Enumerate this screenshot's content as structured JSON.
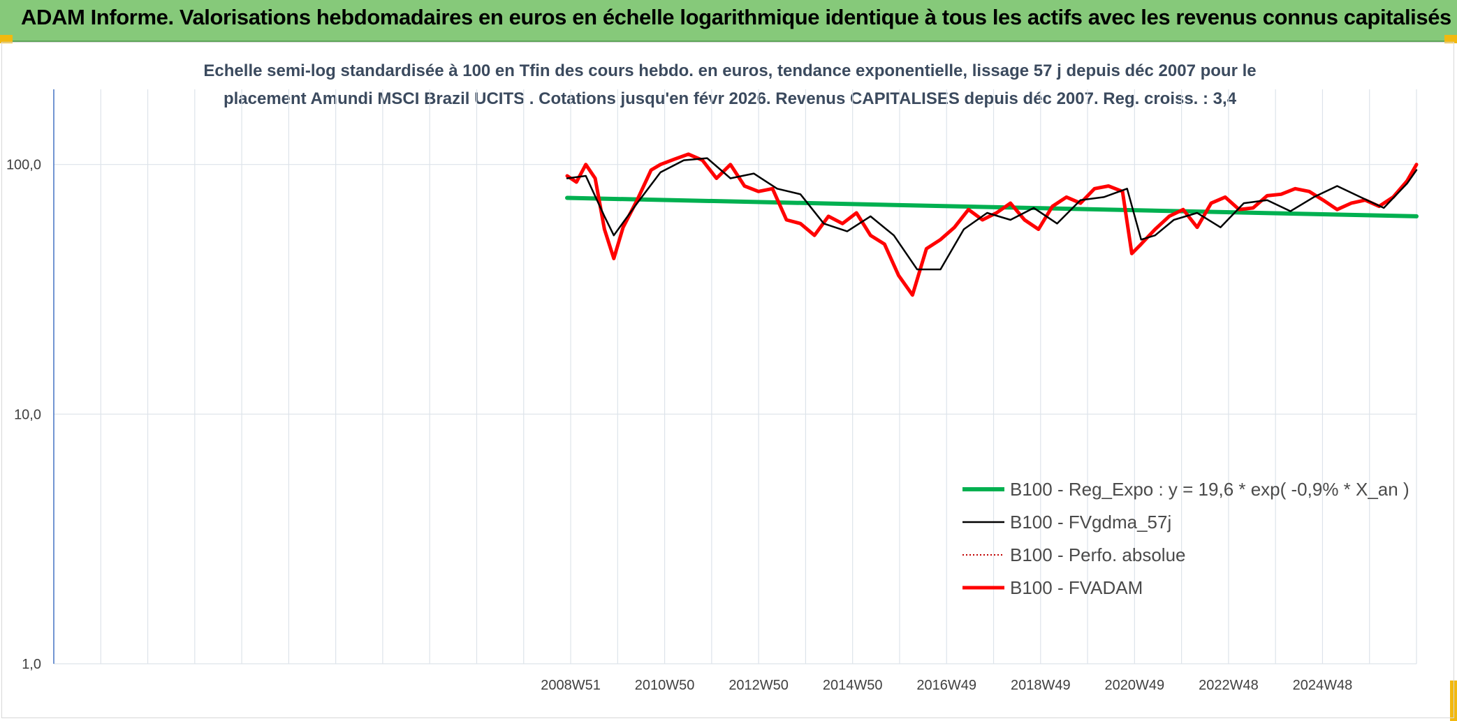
{
  "header": {
    "title": "ADAM Informe. Valorisations hebdomadaires en euros en échelle logarithmique identique à tous les actifs avec les revenus connus capitalisés"
  },
  "colors": {
    "banner": "#86c97a",
    "regression": "#00b050",
    "moving_average": "#000000",
    "perf_absolue": "#c00000",
    "fvadam": "#ff0000",
    "grid": "#dde3ea",
    "axis": "#4472c4"
  },
  "chart_data": {
    "type": "line",
    "title_line1": "Echelle semi-log standardisée à 100 en Tfin des cours hebdo. en euros, tendance exponentielle, lissage 57 j depuis déc 2007 pour le",
    "title_line2": "placement Amundi MSCI Brazil UCITS . Cotations jusqu'en févr 2026. Revenus CAPITALISES depuis déc 2007. Reg. croiss. : 3,4",
    "y_scale": "log",
    "ylim": [
      1,
      200
    ],
    "y_ticks": [
      1,
      10,
      100
    ],
    "y_tick_labels": [
      "1,0",
      "10,0",
      "100,0"
    ],
    "x_categories": [
      "",
      "",
      "",
      "",
      "",
      "",
      "",
      "",
      "",
      "",
      "",
      "2008W51",
      "",
      "2010W50",
      "",
      "2012W50",
      "",
      "2014W50",
      "",
      "2016W49",
      "",
      "2018W49",
      "",
      "2020W49",
      "",
      "2022W48",
      "",
      "2024W48",
      ""
    ],
    "x_tick_labels": [
      "2008W51",
      "2010W50",
      "2012W50",
      "2014W50",
      "2016W49",
      "2018W49",
      "2020W49",
      "2022W48",
      "2024W48"
    ],
    "x_tick_label_index": [
      11,
      13,
      15,
      17,
      19,
      21,
      23,
      25,
      27
    ],
    "x_range_years": [
      1997.0,
      2026.2
    ],
    "legend_position": "bottom-right",
    "grid": true,
    "series": [
      {
        "name": "B100 - Reg_Expo : y = 19,6 * exp( -0,9% *  X_an )",
        "style": "thick-green",
        "x": [
          2008.0,
          2026.2
        ],
        "values": [
          73.5,
          62.0
        ]
      },
      {
        "name": "B100 - FVgdma_57j",
        "style": "thin-black",
        "x": [
          2008.0,
          2008.4,
          2008.8,
          2009.0,
          2009.5,
          2010.0,
          2010.5,
          2011.0,
          2011.5,
          2012.0,
          2012.5,
          2013.0,
          2013.5,
          2014.0,
          2014.5,
          2015.0,
          2015.5,
          2016.0,
          2016.5,
          2017.0,
          2017.5,
          2018.0,
          2018.5,
          2019.0,
          2019.5,
          2020.0,
          2020.3,
          2020.6,
          2021.0,
          2021.5,
          2022.0,
          2022.5,
          2023.0,
          2023.5,
          2024.0,
          2024.5,
          2025.0,
          2025.5,
          2026.0,
          2026.2
        ],
        "values": [
          88,
          90,
          62,
          52,
          70,
          93,
          104,
          106,
          88,
          92,
          80,
          76,
          58,
          54,
          62,
          52,
          38,
          38,
          55,
          64,
          60,
          67,
          58,
          72,
          74,
          80,
          50,
          52,
          60,
          64,
          56,
          70,
          72,
          65,
          74,
          82,
          74,
          67,
          84,
          95
        ]
      },
      {
        "name": "B100 - Perfo. absolue",
        "style": "dotted-red",
        "x": [],
        "values": []
      },
      {
        "name": "B100 - FVADAM",
        "style": "thick-red",
        "x": [
          2008.0,
          2008.2,
          2008.4,
          2008.6,
          2008.8,
          2009.0,
          2009.2,
          2009.5,
          2009.8,
          2010.0,
          2010.3,
          2010.6,
          2010.9,
          2011.2,
          2011.5,
          2011.8,
          2012.1,
          2012.4,
          2012.7,
          2013.0,
          2013.3,
          2013.6,
          2013.9,
          2014.2,
          2014.5,
          2014.8,
          2015.1,
          2015.4,
          2015.7,
          2016.0,
          2016.3,
          2016.6,
          2016.9,
          2017.2,
          2017.5,
          2017.8,
          2018.1,
          2018.4,
          2018.7,
          2019.0,
          2019.3,
          2019.6,
          2019.9,
          2020.1,
          2020.3,
          2020.6,
          2020.9,
          2021.2,
          2021.5,
          2021.8,
          2022.1,
          2022.4,
          2022.7,
          2023.0,
          2023.3,
          2023.6,
          2023.9,
          2024.2,
          2024.5,
          2024.8,
          2025.1,
          2025.4,
          2025.7,
          2026.0,
          2026.2
        ],
        "values": [
          90,
          85,
          100,
          88,
          55,
          42,
          56,
          72,
          95,
          100,
          105,
          110,
          104,
          88,
          100,
          82,
          78,
          80,
          60,
          58,
          52,
          62,
          58,
          64,
          52,
          48,
          36,
          30,
          46,
          50,
          56,
          66,
          60,
          64,
          70,
          60,
          55,
          68,
          74,
          70,
          80,
          82,
          78,
          44,
          48,
          55,
          62,
          66,
          56,
          70,
          74,
          66,
          67,
          75,
          76,
          80,
          78,
          72,
          66,
          70,
          72,
          68,
          74,
          86,
          100
        ]
      }
    ]
  }
}
